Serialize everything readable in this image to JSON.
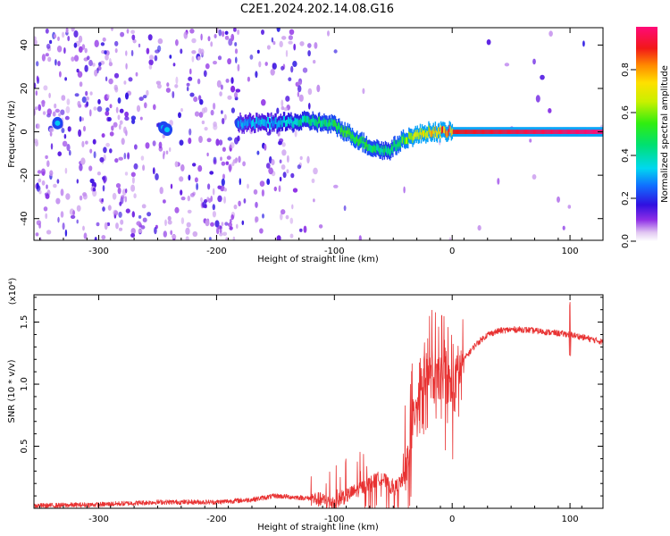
{
  "title": "C2E1.2024.202.14.08.G16",
  "chart_data": [
    {
      "type": "heatmap",
      "xlabel": "Height of straight line (km)",
      "ylabel": "Frequency (Hz)",
      "xlim": [
        -355,
        128
      ],
      "ylim": [
        -50,
        48
      ],
      "x_ticks": [
        -300,
        -200,
        -100,
        0,
        100
      ],
      "y_ticks": [
        -40,
        -20,
        0,
        20,
        40
      ],
      "colorbar": {
        "label": "Normalized spectral amplitude",
        "range": [
          0,
          1
        ],
        "ticks": [
          0.0,
          0.2,
          0.4,
          0.6,
          0.8
        ]
      },
      "ridge": {
        "x": [
          -180,
          -150,
          -120,
          -100,
          -85,
          -70,
          -55,
          -40,
          -20,
          0,
          128
        ],
        "y": [
          4,
          4,
          5,
          3,
          -2,
          -7,
          -9,
          -3,
          0,
          0,
          0
        ],
        "peak_amplitude": [
          0.3,
          0.35,
          0.45,
          0.5,
          0.55,
          0.5,
          0.45,
          0.6,
          0.75,
          0.9,
          1.0
        ]
      }
    },
    {
      "type": "line",
      "xlabel": "Height of straight line (km)",
      "ylabel": "SNR (10 * v/v)",
      "y_multiplier": "(x10⁴)",
      "xlim": [
        -355,
        128
      ],
      "ylim": [
        0,
        1.72
      ],
      "x_ticks": [
        -300,
        -200,
        -100,
        0,
        100
      ],
      "y_ticks": [
        0.5,
        1.0,
        1.5
      ],
      "series": [
        {
          "color": "#e83232",
          "x": [
            -355,
            -300,
            -250,
            -200,
            -170,
            -150,
            -120,
            -100,
            -90,
            -80,
            -70,
            -60,
            -50,
            -40,
            -35,
            -30,
            -25,
            -20,
            -15,
            -10,
            -5,
            0,
            5,
            10,
            20,
            30,
            40,
            50,
            60,
            70,
            80,
            90,
            100,
            110,
            128
          ],
          "y": [
            0.02,
            0.03,
            0.05,
            0.05,
            0.07,
            0.1,
            0.08,
            0.05,
            0.1,
            0.15,
            0.2,
            0.25,
            0.15,
            0.25,
            0.6,
            0.9,
            1.05,
            1.1,
            1.0,
            1.05,
            1.05,
            0.95,
            1.1,
            1.2,
            1.32,
            1.4,
            1.43,
            1.44,
            1.44,
            1.43,
            1.42,
            1.41,
            1.4,
            1.38,
            1.34
          ]
        }
      ]
    }
  ]
}
